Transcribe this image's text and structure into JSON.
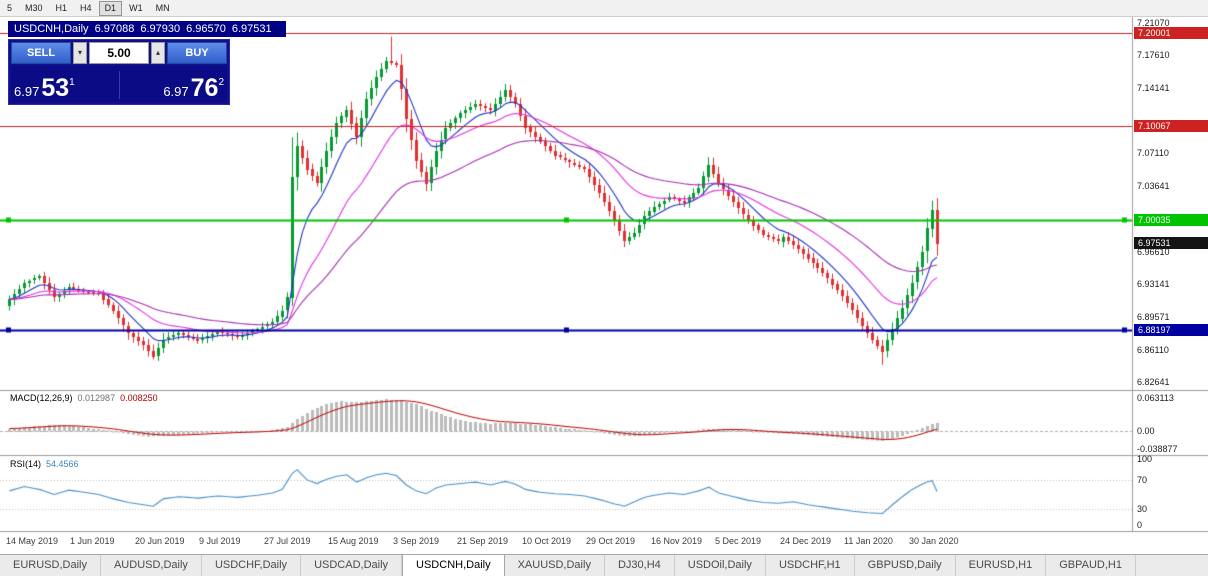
{
  "toolbar": {
    "items": [
      "5",
      "M30",
      "H1",
      "H4",
      "D1",
      "W1",
      "MN"
    ],
    "active": "D1"
  },
  "chart_header": {
    "symbol_period": "USDCNH,Daily",
    "open": "6.97088",
    "high": "6.97930",
    "low": "6.96570",
    "close": "6.97531"
  },
  "trade_panel": {
    "sell_label": "SELL",
    "buy_label": "BUY",
    "volume": "5.00",
    "sell_price": {
      "big": "6.97",
      "pips": "53",
      "sup": "1"
    },
    "buy_price": {
      "big": "6.97",
      "pips": "76",
      "sup": "2"
    }
  },
  "icons": {
    "volume_up": "▴",
    "volume_down": "▾"
  },
  "price_axis": {
    "ticks": [
      "7.21070",
      "7.17610",
      "7.14141",
      "7.07110",
      "7.03641",
      "6.96610",
      "6.93141",
      "6.89571",
      "6.86110",
      "6.82641"
    ]
  },
  "levels": [
    {
      "price": 7.20001,
      "label": "7.20001",
      "color": "#cc2222",
      "width": 1,
      "handles": false
    },
    {
      "price": 7.10067,
      "label": "7.10067",
      "color": "#cc2222",
      "width": 1,
      "handles": false
    },
    {
      "price": 7.00035,
      "label": "7.00035",
      "color": "#00c400",
      "width": 2,
      "handles": true
    },
    {
      "price": 6.88197,
      "label": "6.88197",
      "color": "#0000a0",
      "width": 2,
      "handles": true
    }
  ],
  "current_price": {
    "price": 6.97531,
    "label": "6.97531",
    "bg": "#141414"
  },
  "indicators": {
    "macd": {
      "name": "MACD(12,26,9)",
      "value_main": "0.012987",
      "value_signal": "0.008250",
      "axis_max": "0.063113",
      "axis_zero": "0.00",
      "axis_min": "-0.038877",
      "max": 0.063113,
      "min": -0.038877
    },
    "rsi": {
      "name": "RSI(14)",
      "value": "54.4566",
      "axis": [
        "100",
        "70",
        "30",
        "0"
      ],
      "levels": [
        70,
        30
      ]
    }
  },
  "time_axis": {
    "labels": [
      "14 May 2019",
      "1 Jun 2019",
      "20 Jun 2019",
      "9 Jul 2019",
      "27 Jul 2019",
      "15 Aug 2019",
      "3 Sep 2019",
      "21 Sep 2019",
      "10 Oct 2019",
      "29 Oct 2019",
      "16 Nov 2019",
      "5 Dec 2019",
      "24 Dec 2019",
      "11 Jan 2020",
      "30 Jan 2020"
    ]
  },
  "tabs": {
    "items": [
      "EURUSD,Daily",
      "AUDUSD,Daily",
      "USDCHF,Daily",
      "USDCAD,Daily",
      "USDCNH,Daily",
      "XAUUSD,Daily",
      "DJ30,H4",
      "USDOil,Daily",
      "USDCHF,H1",
      "GBPUSD,Daily",
      "EURUSD,H1",
      "GBPAUD,H1"
    ],
    "active_index": 4
  },
  "colors": {
    "up_candle": "#089a32",
    "down_candle": "#e03232",
    "macd_hist": "#bcbcbc",
    "macd_signal": "#c00000",
    "rsi_line": "#4a90c8"
  },
  "chart_data": {
    "type": "candlestick",
    "symbol": "USDCNH",
    "period": "Daily",
    "n_candles": 188,
    "price_range": [
      6.818,
      7.216
    ],
    "label_indices": [
      0,
      13,
      26,
      39,
      52,
      65,
      78,
      91,
      104,
      117,
      130,
      143,
      156,
      169,
      182
    ],
    "close_anchors": [
      [
        0,
        6.915
      ],
      [
        3,
        6.932
      ],
      [
        6,
        6.94
      ],
      [
        9,
        6.917
      ],
      [
        12,
        6.928
      ],
      [
        15,
        6.923
      ],
      [
        18,
        6.921
      ],
      [
        21,
        6.903
      ],
      [
        24,
        6.879
      ],
      [
        27,
        6.866
      ],
      [
        29,
        6.854
      ],
      [
        31,
        6.872
      ],
      [
        34,
        6.879
      ],
      [
        38,
        6.871
      ],
      [
        42,
        6.88
      ],
      [
        46,
        6.875
      ],
      [
        50,
        6.883
      ],
      [
        53,
        6.891
      ],
      [
        55,
        6.903
      ],
      [
        56,
        6.917
      ],
      [
        57,
        7.046
      ],
      [
        58,
        7.079
      ],
      [
        60,
        7.054
      ],
      [
        62,
        7.04
      ],
      [
        64,
        7.074
      ],
      [
        66,
        7.104
      ],
      [
        68,
        7.118
      ],
      [
        70,
        7.089
      ],
      [
        72,
        7.129
      ],
      [
        74,
        7.153
      ],
      [
        76,
        7.17
      ],
      [
        78,
        7.166
      ],
      [
        79,
        7.14
      ],
      [
        80,
        7.108
      ],
      [
        82,
        7.064
      ],
      [
        84,
        7.039
      ],
      [
        86,
        7.074
      ],
      [
        88,
        7.098
      ],
      [
        91,
        7.114
      ],
      [
        94,
        7.124
      ],
      [
        97,
        7.117
      ],
      [
        100,
        7.139
      ],
      [
        102,
        7.124
      ],
      [
        104,
        7.099
      ],
      [
        107,
        7.084
      ],
      [
        110,
        7.069
      ],
      [
        113,
        7.061
      ],
      [
        116,
        7.054
      ],
      [
        119,
        7.029
      ],
      [
        122,
        6.999
      ],
      [
        124,
        6.977
      ],
      [
        126,
        6.986
      ],
      [
        128,
        7.004
      ],
      [
        130,
        7.014
      ],
      [
        133,
        7.024
      ],
      [
        136,
        7.019
      ],
      [
        139,
        7.034
      ],
      [
        141,
        7.059
      ],
      [
        143,
        7.039
      ],
      [
        146,
        7.019
      ],
      [
        149,
        6.999
      ],
      [
        152,
        6.984
      ],
      [
        155,
        6.977
      ],
      [
        156,
        6.982
      ],
      [
        159,
        6.969
      ],
      [
        162,
        6.954
      ],
      [
        165,
        6.937
      ],
      [
        168,
        6.919
      ],
      [
        170,
        6.904
      ],
      [
        172,
        6.887
      ],
      [
        174,
        6.871
      ],
      [
        176,
        6.859
      ],
      [
        178,
        6.883
      ],
      [
        180,
        6.906
      ],
      [
        182,
        6.933
      ],
      [
        184,
        6.966
      ],
      [
        185,
        6.991
      ],
      [
        186,
        7.011
      ],
      [
        187,
        6.975
      ]
    ],
    "wick_overrides": {
      "57": {
        "low": 6.908
      },
      "77": {
        "high": 7.196
      },
      "176": {
        "low": 6.845
      }
    },
    "ma": [
      {
        "period": 8,
        "color": "#2038c8"
      },
      {
        "period": 21,
        "color": "#e432e4"
      },
      {
        "period": 45,
        "color": "#a832b4"
      }
    ],
    "macd_anchors": [
      [
        0,
        0.004
      ],
      [
        5,
        0.008
      ],
      [
        10,
        0.01
      ],
      [
        15,
        0.006
      ],
      [
        20,
        0.001
      ],
      [
        24,
        -0.005
      ],
      [
        28,
        -0.009
      ],
      [
        33,
        -0.007
      ],
      [
        38,
        -0.004
      ],
      [
        43,
        -0.002
      ],
      [
        48,
        -0.001
      ],
      [
        53,
        0.001
      ],
      [
        56,
        0.006
      ],
      [
        58,
        0.02
      ],
      [
        61,
        0.034
      ],
      [
        64,
        0.043
      ],
      [
        67,
        0.048
      ],
      [
        70,
        0.047
      ],
      [
        73,
        0.049
      ],
      [
        76,
        0.051
      ],
      [
        79,
        0.05
      ],
      [
        82,
        0.043
      ],
      [
        85,
        0.033
      ],
      [
        88,
        0.024
      ],
      [
        91,
        0.018
      ],
      [
        94,
        0.014
      ],
      [
        97,
        0.012
      ],
      [
        100,
        0.013
      ],
      [
        103,
        0.012
      ],
      [
        106,
        0.01
      ],
      [
        109,
        0.007
      ],
      [
        112,
        0.004
      ],
      [
        115,
        0.002
      ],
      [
        118,
        -0.001
      ],
      [
        121,
        -0.005
      ],
      [
        124,
        -0.008
      ],
      [
        127,
        -0.008
      ],
      [
        130,
        -0.005
      ],
      [
        133,
        -0.002
      ],
      [
        136,
        -0.001
      ],
      [
        139,
        0.001
      ],
      [
        141,
        0.004
      ],
      [
        144,
        0.004
      ],
      [
        147,
        0.002
      ],
      [
        150,
        -0.001
      ],
      [
        153,
        -0.003
      ],
      [
        156,
        -0.004
      ],
      [
        159,
        -0.005
      ],
      [
        162,
        -0.007
      ],
      [
        165,
        -0.009
      ],
      [
        168,
        -0.011
      ],
      [
        171,
        -0.013
      ],
      [
        174,
        -0.015
      ],
      [
        176,
        -0.016
      ],
      [
        178,
        -0.013
      ],
      [
        180,
        -0.008
      ],
      [
        182,
        -0.002
      ],
      [
        184,
        0.005
      ],
      [
        186,
        0.011
      ],
      [
        187,
        0.013
      ]
    ],
    "rsi_anchors": [
      [
        0,
        55
      ],
      [
        3,
        61
      ],
      [
        6,
        57
      ],
      [
        9,
        50
      ],
      [
        12,
        56
      ],
      [
        15,
        53
      ],
      [
        18,
        50
      ],
      [
        21,
        44
      ],
      [
        24,
        39
      ],
      [
        27,
        36
      ],
      [
        29,
        34
      ],
      [
        31,
        44
      ],
      [
        34,
        47
      ],
      [
        38,
        45
      ],
      [
        42,
        48
      ],
      [
        46,
        46
      ],
      [
        50,
        49
      ],
      [
        53,
        52
      ],
      [
        55,
        57
      ],
      [
        57,
        79
      ],
      [
        58,
        84
      ],
      [
        60,
        70
      ],
      [
        62,
        65
      ],
      [
        64,
        71
      ],
      [
        66,
        75
      ],
      [
        68,
        77
      ],
      [
        70,
        67
      ],
      [
        72,
        73
      ],
      [
        74,
        77
      ],
      [
        76,
        79
      ],
      [
        78,
        76
      ],
      [
        80,
        63
      ],
      [
        82,
        55
      ],
      [
        84,
        51
      ],
      [
        86,
        59
      ],
      [
        88,
        63
      ],
      [
        91,
        65
      ],
      [
        94,
        67
      ],
      [
        97,
        63
      ],
      [
        100,
        68
      ],
      [
        102,
        64
      ],
      [
        104,
        57
      ],
      [
        107,
        53
      ],
      [
        110,
        51
      ],
      [
        113,
        50
      ],
      [
        116,
        48
      ],
      [
        119,
        43
      ],
      [
        122,
        37
      ],
      [
        124,
        34
      ],
      [
        126,
        40
      ],
      [
        128,
        46
      ],
      [
        130,
        49
      ],
      [
        133,
        52
      ],
      [
        136,
        50
      ],
      [
        139,
        55
      ],
      [
        141,
        60
      ],
      [
        143,
        52
      ],
      [
        146,
        47
      ],
      [
        149,
        42
      ],
      [
        152,
        39
      ],
      [
        155,
        38
      ],
      [
        158,
        40
      ],
      [
        161,
        36
      ],
      [
        164,
        33
      ],
      [
        167,
        30
      ],
      [
        170,
        27
      ],
      [
        173,
        25
      ],
      [
        176,
        24
      ],
      [
        178,
        36
      ],
      [
        180,
        47
      ],
      [
        182,
        57
      ],
      [
        184,
        64
      ],
      [
        185,
        67
      ],
      [
        186,
        69
      ],
      [
        187,
        54
      ]
    ]
  }
}
